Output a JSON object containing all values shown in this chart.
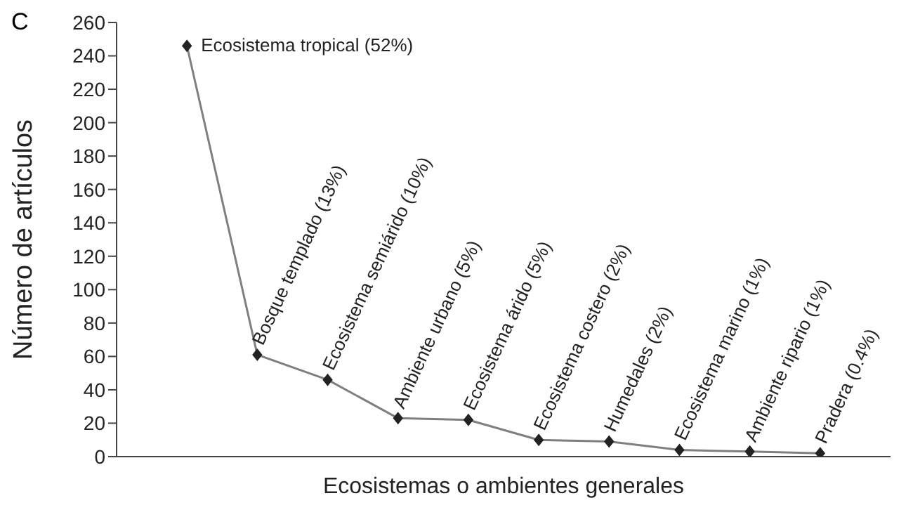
{
  "chart_data": {
    "type": "line",
    "title": "C",
    "xlabel": "Ecosistemas o ambientes generales",
    "ylabel": "Número de artículos",
    "categories": [
      null,
      null,
      null,
      null,
      null,
      null,
      null,
      null,
      null,
      null
    ],
    "annotations": [
      "Ecosistema tropical (52%)",
      "Bosque templado (13%)",
      "Ecosistema semiárido (10%)",
      "Ambiente urbano (5%)",
      "Ecosistema árido (5%)",
      "Ecosistema costero (2%)",
      "Humedales (2%)",
      "Ecosistema marino (1%)",
      "Ambiente ripario (1%)",
      "Pradera (0.4%)"
    ],
    "series": [
      {
        "color": "#7f7f7f",
        "values": [
          246,
          61,
          46,
          23,
          22,
          10,
          9,
          4,
          3,
          2
        ]
      }
    ],
    "ylim": [
      0,
      260
    ],
    "yticks": [
      0,
      20,
      40,
      60,
      80,
      100,
      120,
      140,
      160,
      180,
      200,
      220,
      240,
      260
    ],
    "grid": false,
    "legend": false,
    "marker": "diamond",
    "line_style": "solid",
    "tick_labels": "y"
  }
}
